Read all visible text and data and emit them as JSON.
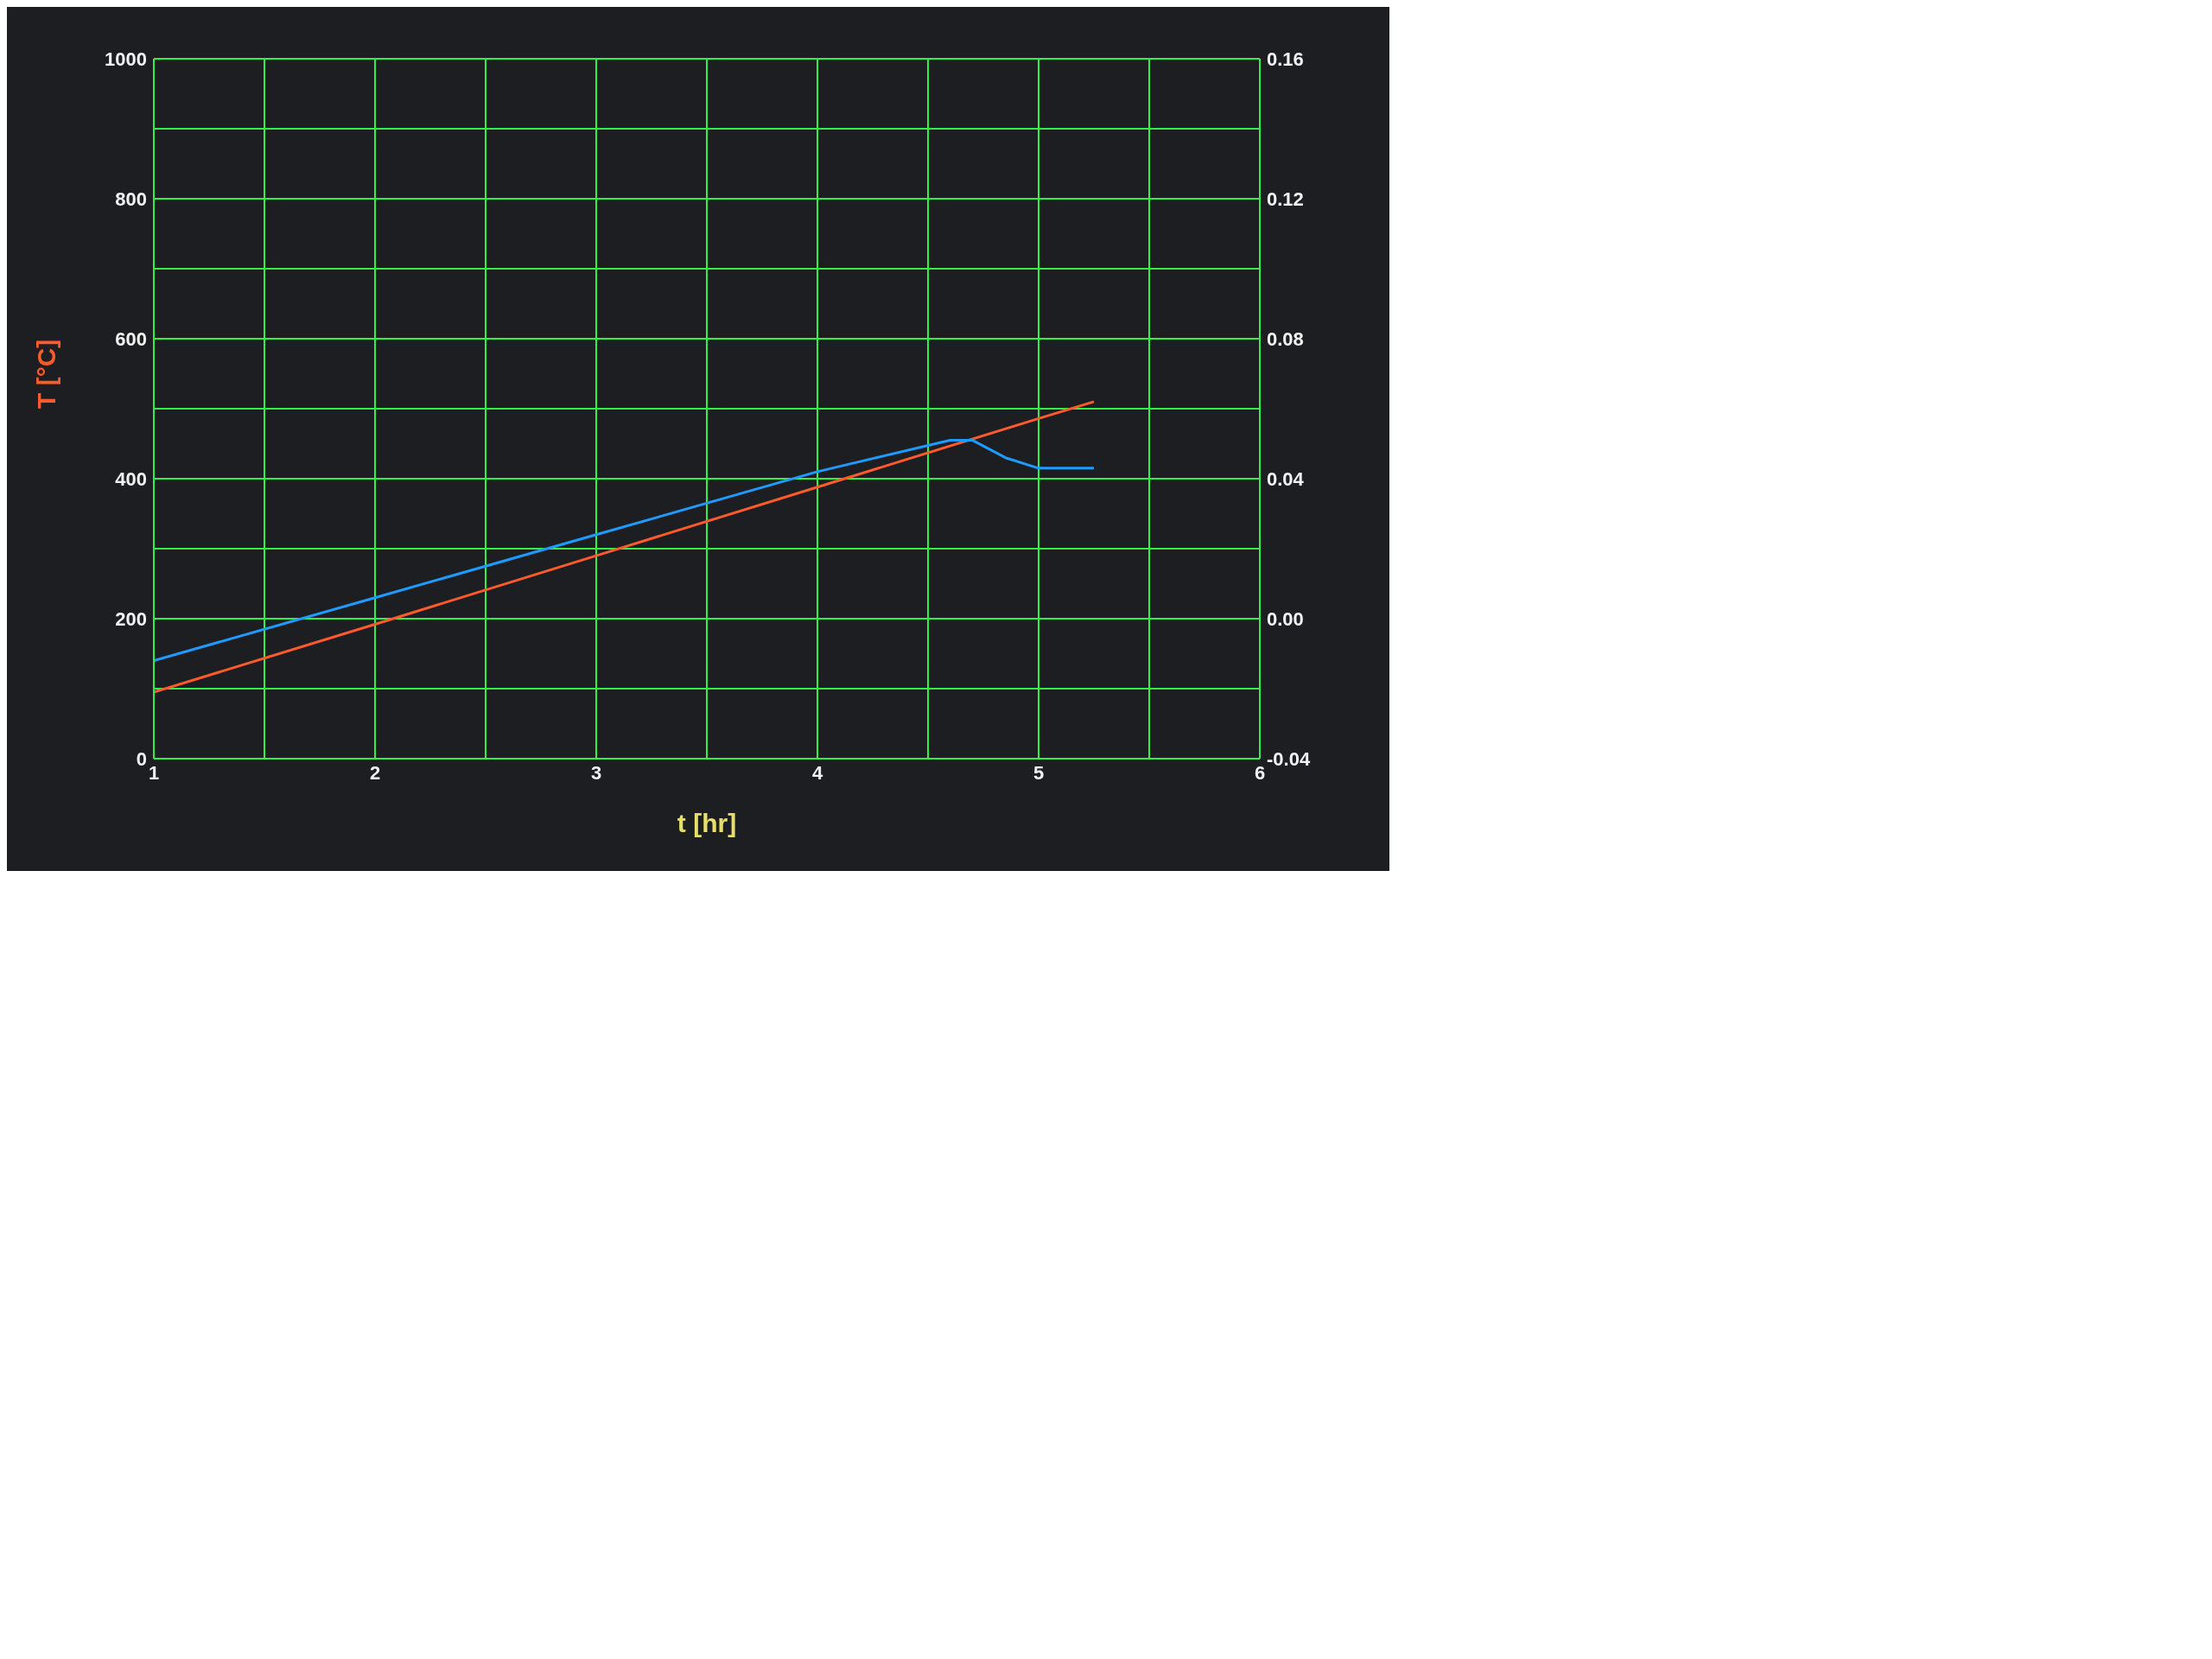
{
  "chart_data": {
    "type": "line",
    "xlabel": "t [hr]",
    "ylabel": "T [°C]",
    "xlim": [
      1,
      6
    ],
    "xticks": [
      1,
      {
        "value": 1.5,
        "label": null
      },
      2,
      {
        "value": 2.5,
        "label": null
      },
      3,
      {
        "value": 3.5,
        "label": null
      },
      4,
      {
        "value": 4.5,
        "label": null
      },
      5,
      {
        "value": 5.5,
        "label": null
      },
      6
    ],
    "ylim": [
      0,
      1000
    ],
    "yticks": [
      0,
      {
        "value": 100,
        "label": null
      },
      200,
      {
        "value": 300,
        "label": null
      },
      400,
      {
        "value": 500,
        "label": null
      },
      600,
      {
        "value": 700,
        "label": null
      },
      800,
      {
        "value": 900,
        "label": null
      },
      1000
    ],
    "y2lim": [
      -0.04,
      0.16
    ],
    "y2ticks": [
      -0.04,
      {
        "value": 0,
        "label": "0.00"
      },
      0.04,
      0.08,
      0.12,
      0.16
    ],
    "grid": true,
    "marker": "none",
    "line_style": "solid",
    "series": [
      {
        "color": "#ff5a2a",
        "x": [
          1,
          2,
          3,
          4,
          5,
          5.25
        ],
        "values": [
          95,
          192,
          290,
          388,
          486,
          510
        ]
      },
      {
        "color": "#1e9bff",
        "axis": "y2",
        "x": [
          1,
          2,
          3,
          4,
          4.6,
          4.7,
          4.85,
          5,
          5.25
        ],
        "values": [
          -0.012,
          0.006,
          0.024,
          0.042,
          0.051,
          0.051,
          0.046,
          0.043,
          0.043
        ]
      }
    ]
  }
}
